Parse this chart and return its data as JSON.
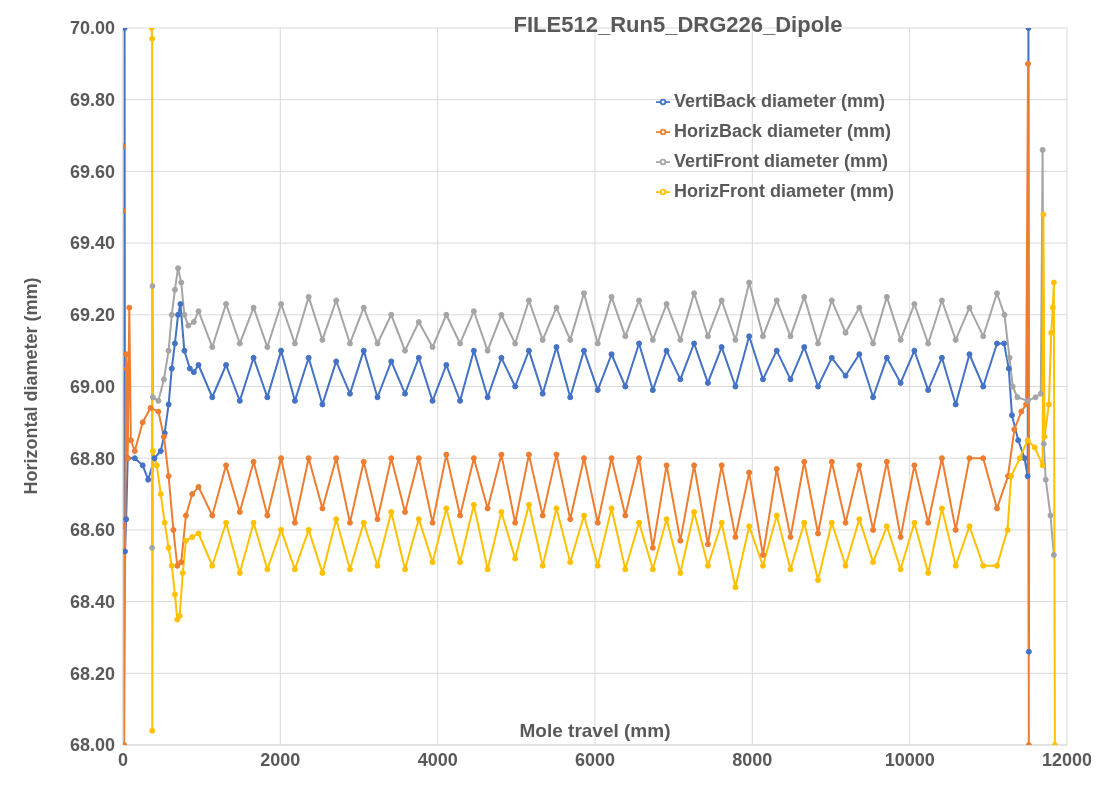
{
  "chart_data": {
    "type": "line",
    "title": "FILE512_Run5_DRG226_Dipole",
    "xlabel": "Mole travel (mm)",
    "ylabel": "Horizontal diameter (mm)",
    "xlim": [
      0,
      12000
    ],
    "xticks": [
      0,
      2000,
      4000,
      6000,
      8000,
      10000,
      12000
    ],
    "ylim": [
      68,
      70
    ],
    "yticks": [
      {
        "value": 68,
        "label": "68.00"
      },
      {
        "value": 68.2,
        "label": "68.20"
      },
      {
        "value": 68.4,
        "label": "68.40"
      },
      {
        "value": 68.6,
        "label": "68.60"
      },
      {
        "value": 68.8,
        "label": "68.80"
      },
      {
        "value": 69,
        "label": "69.00"
      },
      {
        "value": 69.2,
        "label": "69.20"
      },
      {
        "value": 69.4,
        "label": "69.40"
      },
      {
        "value": 69.6,
        "label": "69.60"
      },
      {
        "value": 69.8,
        "label": "69.80"
      },
      {
        "value": 70,
        "label": "70.00"
      }
    ],
    "grid": true,
    "legend": "top right",
    "marker": "circle",
    "line_style": "solid",
    "series": [
      {
        "name": "VertiBack diameter (mm)",
        "color": "#4472c4",
        "x": [
          20,
          25,
          40,
          60,
          150,
          250,
          320,
          400,
          480,
          530,
          580,
          620,
          660,
          700,
          730,
          780,
          850,
          900,
          960,
          1135,
          1310,
          1485,
          1660,
          1835,
          2010,
          2185,
          2360,
          2535,
          2710,
          2885,
          3060,
          3235,
          3410,
          3585,
          3760,
          3935,
          4110,
          4285,
          4460,
          4635,
          4810,
          4985,
          5160,
          5335,
          5510,
          5685,
          5860,
          6035,
          6210,
          6385,
          6560,
          6735,
          6910,
          7085,
          7260,
          7435,
          7610,
          7785,
          7960,
          8135,
          8310,
          8485,
          8660,
          8835,
          9010,
          9185,
          9360,
          9535,
          9710,
          9885,
          10060,
          10235,
          10410,
          10585,
          10760,
          10935,
          11110,
          11200,
          11260,
          11300,
          11380,
          11460,
          11500,
          11510,
          11515
        ],
        "values": [
          70.0,
          68.54,
          68.63,
          68.8,
          68.8,
          68.78,
          68.74,
          68.8,
          68.82,
          68.87,
          68.95,
          69.05,
          69.12,
          69.2,
          69.23,
          69.1,
          69.05,
          69.04,
          69.06,
          68.97,
          69.06,
          68.96,
          69.08,
          68.97,
          69.1,
          68.96,
          69.08,
          68.95,
          69.07,
          68.98,
          69.1,
          68.97,
          69.07,
          68.98,
          69.08,
          68.96,
          69.06,
          68.96,
          69.1,
          68.97,
          69.08,
          69.0,
          69.1,
          68.98,
          69.11,
          68.97,
          69.1,
          68.99,
          69.09,
          69.0,
          69.12,
          68.99,
          69.1,
          69.02,
          69.12,
          69.01,
          69.11,
          69.0,
          69.14,
          69.02,
          69.1,
          69.02,
          69.11,
          69.0,
          69.08,
          69.03,
          69.09,
          68.97,
          69.08,
          69.01,
          69.1,
          68.99,
          69.08,
          68.95,
          69.09,
          69.0,
          69.12,
          69.12,
          69.05,
          68.92,
          68.85,
          68.8,
          68.75,
          70.0,
          68.26
        ]
      },
      {
        "name": "HorizBack diameter (mm)",
        "color": "#ed7d31",
        "x": [
          0,
          0,
          0,
          15,
          40,
          50,
          60,
          80,
          100,
          150,
          250,
          350,
          450,
          520,
          580,
          640,
          690,
          740,
          800,
          880,
          960,
          1135,
          1310,
          1485,
          1660,
          1835,
          2010,
          2185,
          2360,
          2535,
          2710,
          2885,
          3060,
          3235,
          3410,
          3585,
          3760,
          3935,
          4110,
          4285,
          4460,
          4635,
          4810,
          4985,
          5160,
          5335,
          5510,
          5685,
          5860,
          6035,
          6210,
          6385,
          6560,
          6735,
          6910,
          7085,
          7260,
          7435,
          7610,
          7785,
          7960,
          8135,
          8310,
          8485,
          8660,
          8835,
          9010,
          9185,
          9360,
          9535,
          9710,
          9885,
          10060,
          10235,
          10410,
          10585,
          10760,
          10935,
          11110,
          11250,
          11330,
          11420,
          11480,
          11505,
          11515
        ],
        "values": [
          69.67,
          69.49,
          68.61,
          68.0,
          69.09,
          69.05,
          68.8,
          69.22,
          68.85,
          68.82,
          68.9,
          68.94,
          68.93,
          68.86,
          68.75,
          68.6,
          68.5,
          68.51,
          68.64,
          68.7,
          68.72,
          68.64,
          68.78,
          68.65,
          68.79,
          68.64,
          68.8,
          68.62,
          68.8,
          68.66,
          68.8,
          68.62,
          68.79,
          68.63,
          68.8,
          68.65,
          68.8,
          68.62,
          68.81,
          68.64,
          68.8,
          68.66,
          68.81,
          68.62,
          68.81,
          68.64,
          68.81,
          68.63,
          68.8,
          68.62,
          68.8,
          68.64,
          68.8,
          68.55,
          68.78,
          68.57,
          68.78,
          68.56,
          68.78,
          68.58,
          68.76,
          68.53,
          68.77,
          68.58,
          68.79,
          68.59,
          68.79,
          68.62,
          68.78,
          68.6,
          68.79,
          68.58,
          68.78,
          68.62,
          68.8,
          68.6,
          68.8,
          68.8,
          68.66,
          68.75,
          68.88,
          68.93,
          68.95,
          69.9,
          68.0
        ]
      },
      {
        "name": "VertiFront diameter (mm)",
        "color": "#a5a5a5",
        "x": [
          370,
          375,
          380,
          450,
          520,
          580,
          620,
          660,
          700,
          740,
          780,
          830,
          900,
          960,
          1135,
          1310,
          1485,
          1660,
          1835,
          2010,
          2185,
          2360,
          2535,
          2710,
          2885,
          3060,
          3235,
          3410,
          3585,
          3760,
          3935,
          4110,
          4285,
          4460,
          4635,
          4810,
          4985,
          5160,
          5335,
          5510,
          5685,
          5860,
          6035,
          6210,
          6385,
          6560,
          6735,
          6910,
          7085,
          7260,
          7435,
          7610,
          7785,
          7960,
          8135,
          8310,
          8485,
          8660,
          8835,
          9010,
          9185,
          9360,
          9535,
          9710,
          9885,
          10060,
          10235,
          10410,
          10585,
          10760,
          10935,
          11110,
          11205,
          11270,
          11310,
          11370,
          11500,
          11600,
          11667,
          11690,
          11705,
          11730,
          11790,
          11833
        ],
        "values": [
          68.55,
          69.28,
          68.97,
          68.96,
          69.02,
          69.1,
          69.2,
          69.27,
          69.33,
          69.29,
          69.2,
          69.17,
          69.18,
          69.21,
          69.11,
          69.23,
          69.12,
          69.22,
          69.11,
          69.23,
          69.12,
          69.25,
          69.13,
          69.24,
          69.12,
          69.22,
          69.12,
          69.2,
          69.1,
          69.18,
          69.11,
          69.2,
          69.12,
          69.21,
          69.1,
          69.2,
          69.12,
          69.24,
          69.13,
          69.22,
          69.13,
          69.26,
          69.12,
          69.25,
          69.14,
          69.24,
          69.13,
          69.23,
          69.13,
          69.26,
          69.14,
          69.24,
          69.13,
          69.29,
          69.14,
          69.24,
          69.14,
          69.25,
          69.12,
          69.24,
          69.15,
          69.22,
          69.12,
          69.25,
          69.13,
          69.23,
          69.12,
          69.24,
          69.13,
          69.22,
          69.14,
          69.26,
          69.2,
          69.08,
          69.0,
          68.97,
          68.96,
          68.97,
          68.98,
          69.66,
          68.84,
          68.74,
          68.64,
          68.53
        ]
      },
      {
        "name": "HorizFront diameter (mm)",
        "color": "#ffc000",
        "x": [
          365,
          370,
          372,
          380,
          430,
          480,
          530,
          580,
          620,
          660,
          690,
          720,
          760,
          800,
          880,
          960,
          1135,
          1310,
          1485,
          1660,
          1835,
          2010,
          2185,
          2360,
          2535,
          2710,
          2885,
          3060,
          3235,
          3410,
          3585,
          3760,
          3935,
          4110,
          4285,
          4460,
          4635,
          4810,
          4985,
          5160,
          5335,
          5510,
          5685,
          5860,
          6035,
          6210,
          6385,
          6560,
          6735,
          6910,
          7085,
          7260,
          7435,
          7610,
          7785,
          7960,
          8135,
          8310,
          8485,
          8660,
          8835,
          9010,
          9185,
          9360,
          9535,
          9710,
          9885,
          10060,
          10235,
          10410,
          10585,
          10760,
          10935,
          11110,
          11244,
          11290,
          11400,
          11500,
          11590,
          11690,
          11700,
          11715,
          11770,
          11800,
          11820,
          11833,
          11846
        ],
        "values": [
          70.0,
          69.97,
          68.04,
          68.82,
          68.78,
          68.7,
          68.62,
          68.55,
          68.5,
          68.42,
          68.35,
          68.36,
          68.48,
          68.57,
          68.58,
          68.59,
          68.5,
          68.62,
          68.48,
          68.62,
          68.49,
          68.6,
          68.49,
          68.6,
          68.48,
          68.63,
          68.49,
          68.62,
          68.5,
          68.65,
          68.49,
          68.63,
          68.51,
          68.66,
          68.51,
          68.67,
          68.49,
          68.65,
          68.52,
          68.67,
          68.5,
          68.66,
          68.51,
          68.64,
          68.5,
          68.66,
          68.49,
          68.62,
          68.49,
          68.63,
          68.48,
          68.65,
          68.5,
          68.62,
          68.44,
          68.61,
          68.5,
          68.64,
          68.49,
          68.62,
          68.46,
          68.62,
          68.5,
          68.63,
          68.51,
          68.61,
          68.49,
          68.62,
          68.48,
          68.66,
          68.5,
          68.61,
          68.5,
          68.5,
          68.6,
          68.75,
          68.8,
          68.85,
          68.83,
          68.78,
          69.48,
          68.86,
          68.95,
          69.15,
          69.22,
          69.29,
          68.0
        ]
      }
    ]
  }
}
